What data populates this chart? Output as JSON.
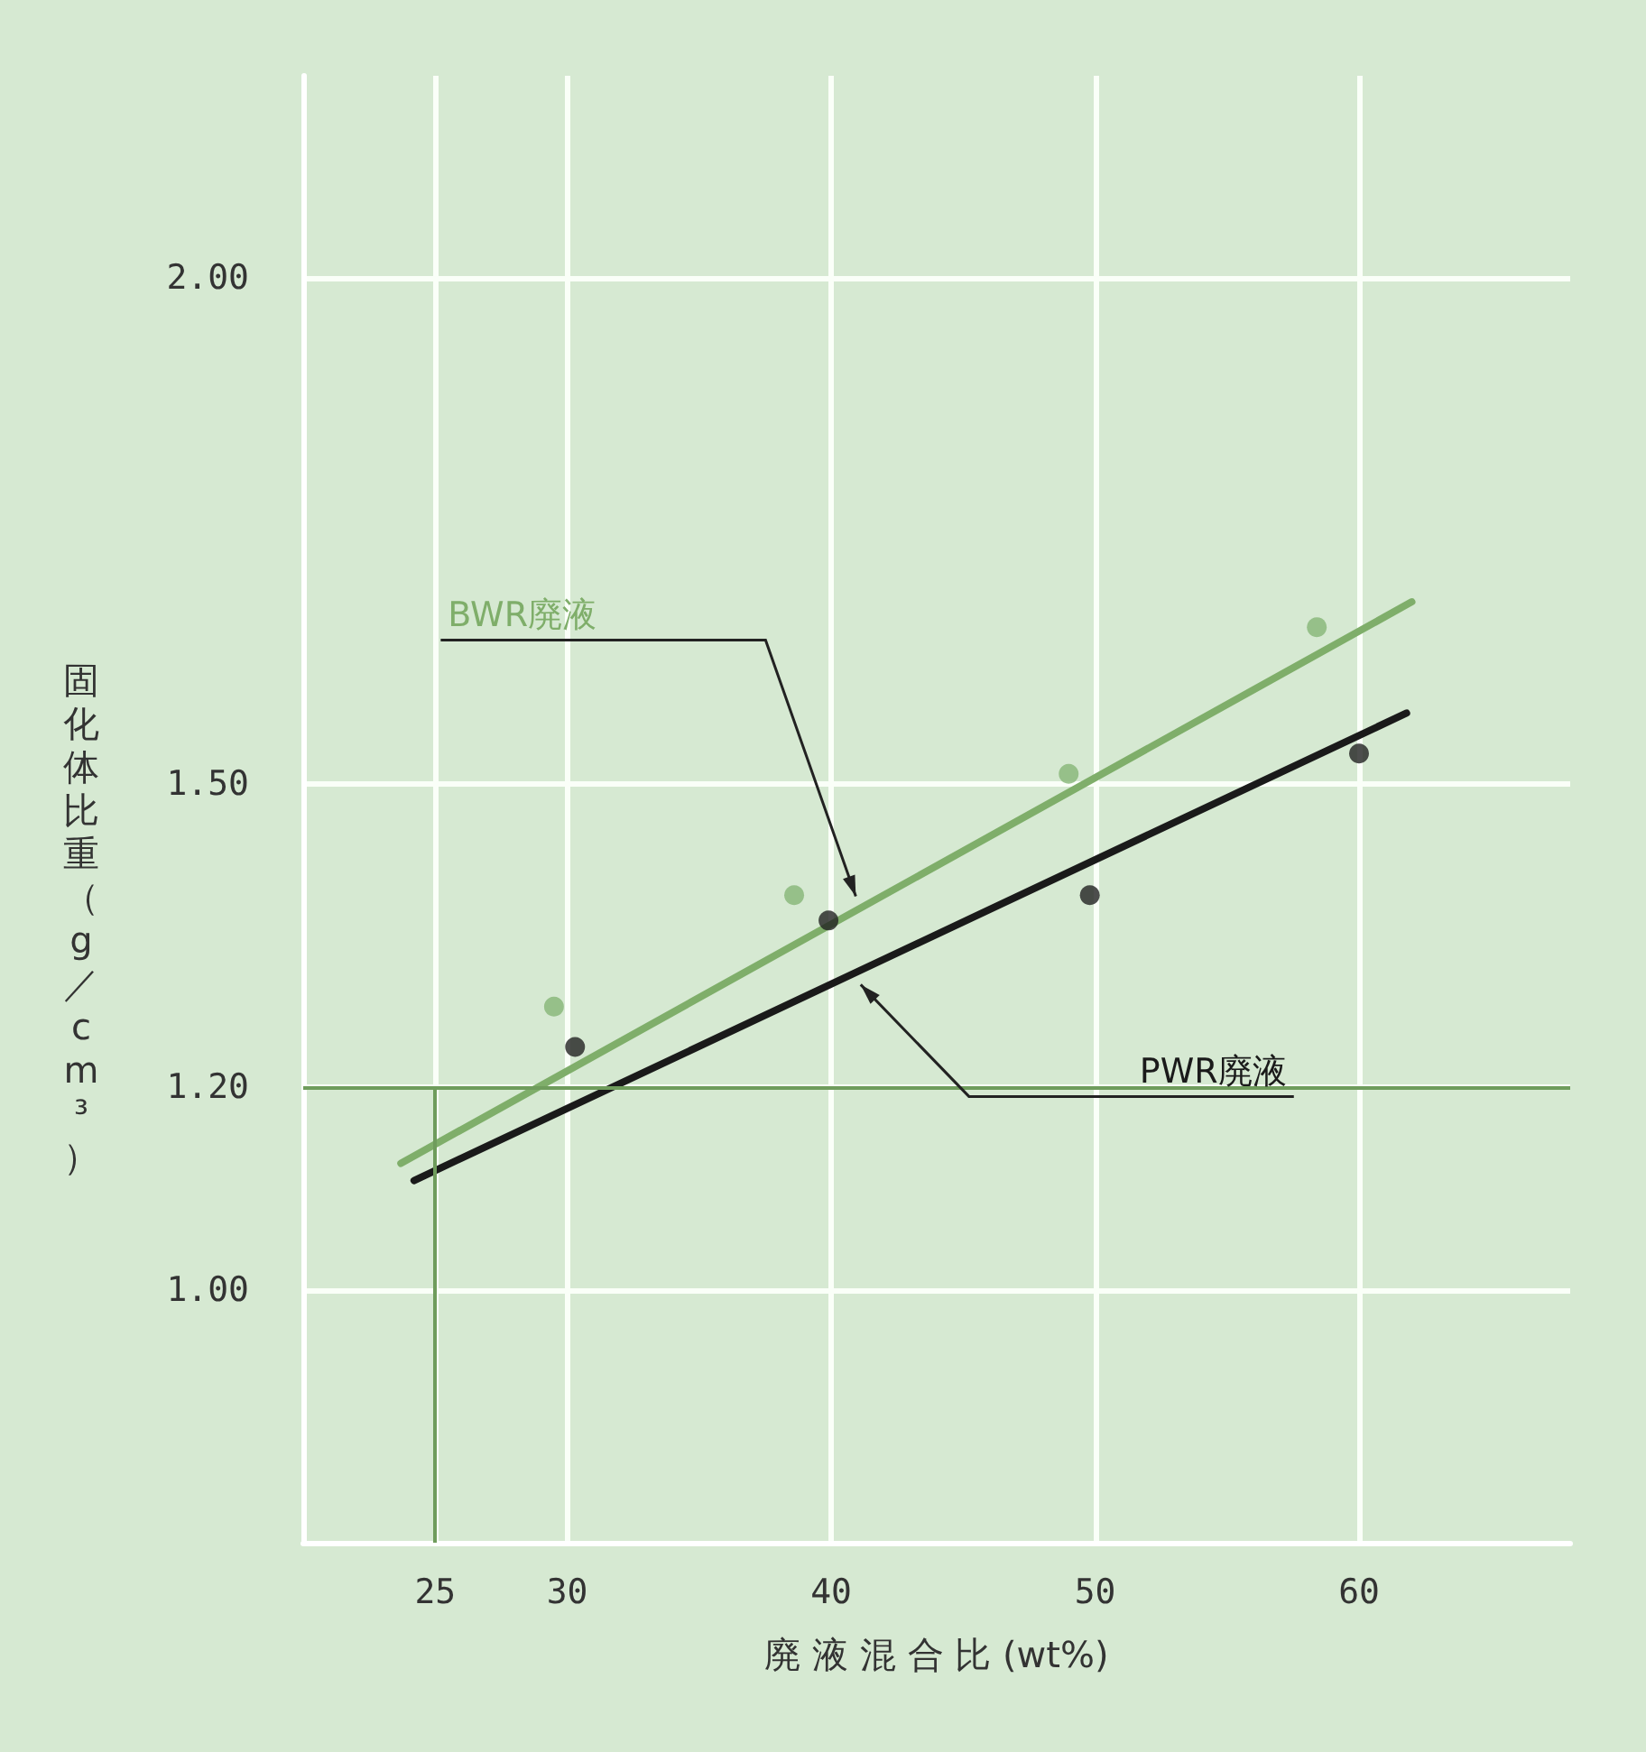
{
  "chart_data": {
    "type": "line",
    "xlabel": "廃 液 混 合 比 (wt%)",
    "ylabel": "固化体比重（g／cm³）",
    "xlim": [
      20,
      68
    ],
    "ylim": [
      0.75,
      2.2
    ],
    "xticks": [
      25,
      30,
      40,
      50,
      60
    ],
    "yticks": [
      {
        "value": 1.0,
        "label": "1.00"
      },
      {
        "value": 1.2,
        "label": "1.20"
      },
      {
        "value": 1.5,
        "label": "1.50"
      },
      {
        "value": 2.0,
        "label": "2.00"
      }
    ],
    "grid": true,
    "legend": false,
    "series": [
      {
        "name": "BWR廃液",
        "color": "#7fae6a",
        "x": [
          23.7,
          62.0
        ],
        "values": [
          1.125,
          1.68
        ]
      },
      {
        "type": "scatter",
        "marker": "circle",
        "color": "#86b577",
        "x": [
          29.5,
          38.6,
          49.0,
          58.4
        ],
        "values": [
          1.28,
          1.39,
          1.51,
          1.655
        ]
      },
      {
        "name": "PWR廃液",
        "color": "#1a1a1a",
        "x": [
          24.2,
          61.8
        ],
        "values": [
          1.108,
          1.57
        ]
      },
      {
        "type": "scatter",
        "marker": "circle",
        "color": "#222222",
        "x": [
          30.3,
          39.9,
          49.8,
          60.0
        ],
        "values": [
          1.24,
          1.365,
          1.39,
          1.53
        ]
      }
    ],
    "ref_lines": [
      {
        "axis": "y",
        "value": 1.2,
        "color": "#6f9c5c"
      },
      {
        "axis": "x",
        "value": 25,
        "color": "#6f9c5c"
      }
    ]
  }
}
